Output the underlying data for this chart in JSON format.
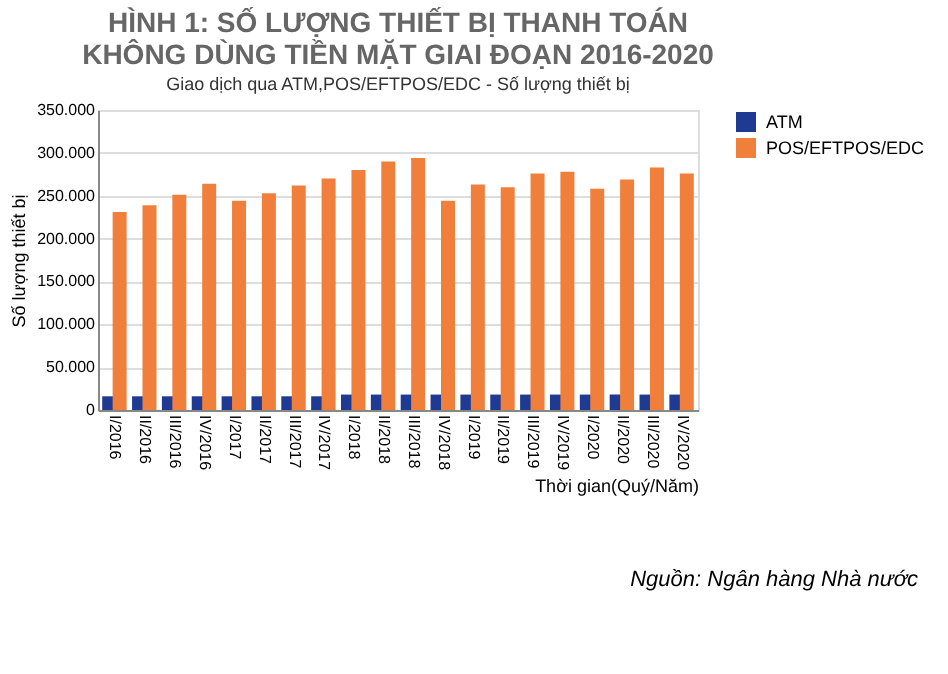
{
  "chart_data": {
    "type": "bar",
    "title": [
      "HÌNH 1: SỐ LƯỢNG THIẾT BỊ THANH TOÁN",
      "KHÔNG DÙNG TIỀN MẶT GIAI ĐOẠN 2016-2020"
    ],
    "subtitle": "Giao dịch qua ATM,POS/EFTPOS/EDC - Số lượng thiết bị",
    "xlabel": "Thời gian(Quý/Năm)",
    "ylabel": "Số lượng thiết bị",
    "categories": [
      "I/2016",
      "II/2016",
      "III/2016",
      "IV/2016",
      "I/2017",
      "II/2017",
      "III/2017",
      "IV/2017",
      "I/2018",
      "II/2018",
      "III/2018",
      "IV/2018",
      "I/2019",
      "II/2019",
      "III/2019",
      "IV/2019",
      "I/2020",
      "II/2020",
      "III/2020",
      "IV/2020"
    ],
    "series": [
      {
        "name": "ATM",
        "color": "#1f3a93",
        "values": [
          16000,
          16000,
          16000,
          16000,
          16000,
          16000,
          16000,
          16000,
          18000,
          18000,
          18000,
          18000,
          18000,
          18000,
          18000,
          18000,
          18000,
          18000,
          18000,
          18000
        ]
      },
      {
        "name": "POS/EFTPOS/EDC",
        "color": "#f07f3c",
        "values": [
          231000,
          239000,
          251000,
          264000,
          244000,
          253000,
          262000,
          270000,
          280000,
          290000,
          294000,
          244000,
          263000,
          260000,
          276000,
          278000,
          258000,
          269000,
          283000,
          276000
        ]
      }
    ],
    "ylim": [
      0,
      350000
    ],
    "yticks": [
      {
        "value": 0,
        "label": "0"
      },
      {
        "value": 50000,
        "label": "50.000"
      },
      {
        "value": 100000,
        "label": "100.000"
      },
      {
        "value": 150000,
        "label": "150.000"
      },
      {
        "value": 200000,
        "label": "200.000"
      },
      {
        "value": 250000,
        "label": "250.000"
      },
      {
        "value": 300000,
        "label": "300.000"
      },
      {
        "value": 350000,
        "label": "350.000"
      }
    ],
    "grid": "y",
    "legend": "right",
    "annotations": [
      "Nguồn: Ngân hàng Nhà nước"
    ]
  }
}
